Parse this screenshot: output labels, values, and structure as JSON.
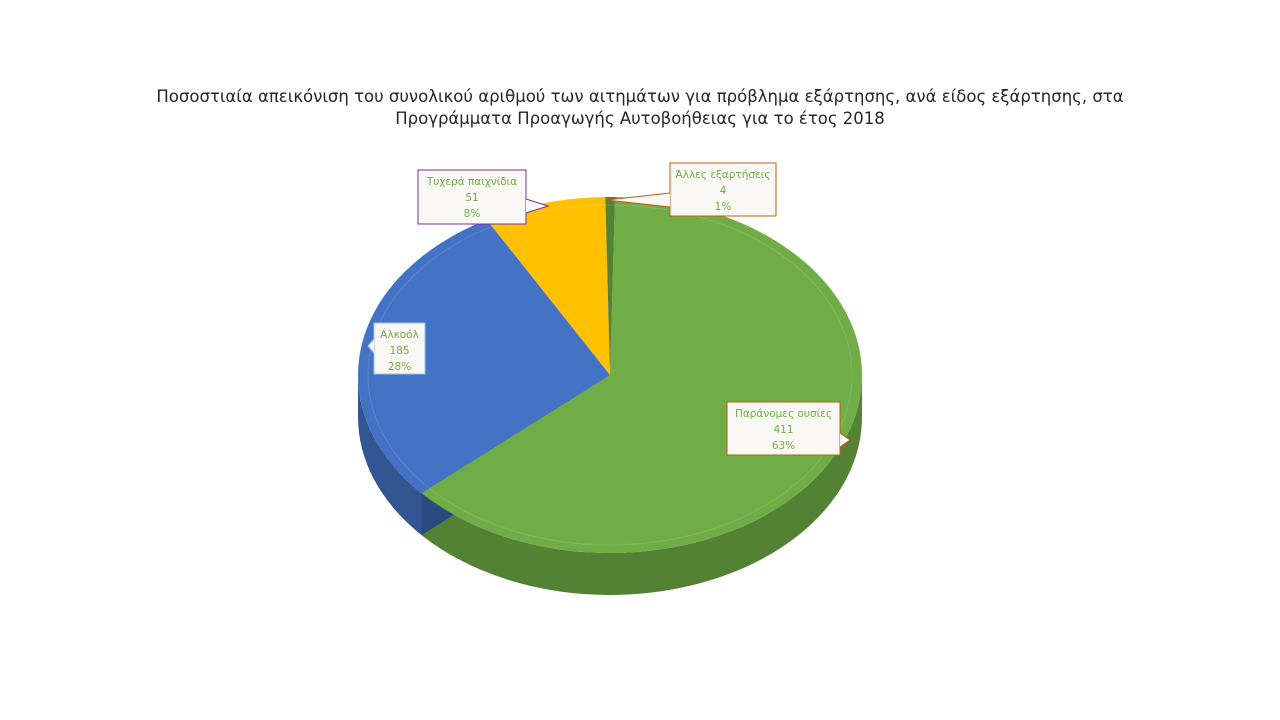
{
  "title": {
    "line1": "Ποσοστιαία απεικόνιση του συνολικού αριθμού των αιτημάτων για πρόβλημα εξάρτησης, ανά είδος εξάρτησης, στα",
    "line2": "Προγράμματα Προαγωγής Αυτοβοήθειας για το έτος 2018"
  },
  "chart_data": {
    "type": "pie",
    "style": "3d",
    "title": "Ποσοστιαία απεικόνιση του συνολικού αριθμού των αιτημάτων για πρόβλημα εξάρτησης, ανά είδος εξάρτησης, στα Προγράμματα Προαγωγής Αυτοβοήθειας για το έτος 2018",
    "categories": [
      "Παράνομες ουσίες",
      "Αλκοόλ",
      "Τυχερά παιχνίδια",
      "Άλλες εξαρτήσεις"
    ],
    "values": [
      411,
      185,
      51,
      4
    ],
    "percent_labels": [
      "63%",
      "28%",
      "8%",
      "1%"
    ],
    "colors": [
      "#70ad47",
      "#4472c4",
      "#ffc000",
      "#548235"
    ],
    "callout_borders": [
      "#c55a11",
      "#9dc3e6",
      "#7030a0",
      "#c55a11"
    ],
    "legend": "none"
  }
}
